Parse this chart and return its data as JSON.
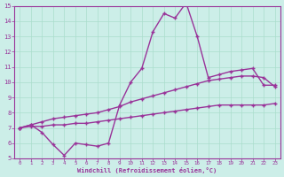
{
  "line1_x": [
    0,
    1,
    2,
    3,
    4,
    5,
    6,
    7,
    8,
    9,
    10,
    11,
    12,
    13,
    14,
    15,
    16,
    17,
    18,
    19,
    20,
    21,
    22,
    23
  ],
  "line1_y": [
    7.0,
    7.2,
    6.7,
    5.9,
    5.2,
    6.0,
    5.9,
    5.8,
    6.0,
    8.5,
    10.0,
    10.9,
    13.3,
    14.5,
    14.2,
    15.2,
    13.0,
    10.3,
    10.5,
    10.7,
    10.8,
    10.9,
    9.8,
    9.8
  ],
  "line2_x": [
    0,
    1,
    2,
    3,
    4,
    5,
    6,
    7,
    8,
    9,
    10,
    11,
    12,
    13,
    14,
    15,
    16,
    17,
    18,
    19,
    20,
    21,
    22,
    23
  ],
  "line2_y": [
    7.0,
    7.2,
    7.4,
    7.6,
    7.7,
    7.8,
    7.9,
    8.0,
    8.2,
    8.4,
    8.7,
    8.9,
    9.1,
    9.3,
    9.5,
    9.7,
    9.9,
    10.1,
    10.2,
    10.3,
    10.4,
    10.4,
    10.3,
    9.7
  ],
  "line3_x": [
    0,
    1,
    2,
    3,
    4,
    5,
    6,
    7,
    8,
    9,
    10,
    11,
    12,
    13,
    14,
    15,
    16,
    17,
    18,
    19,
    20,
    21,
    22,
    23
  ],
  "line3_y": [
    7.0,
    7.1,
    7.1,
    7.2,
    7.2,
    7.3,
    7.3,
    7.4,
    7.5,
    7.6,
    7.7,
    7.8,
    7.9,
    8.0,
    8.1,
    8.2,
    8.3,
    8.4,
    8.5,
    8.5,
    8.5,
    8.5,
    8.5,
    8.6
  ],
  "line_color": "#993399",
  "bg_color": "#cceee8",
  "grid_color": "#aaddcc",
  "xlabel": "Windchill (Refroidissement éolien,°C)",
  "xlim": [
    -0.5,
    23.5
  ],
  "ylim": [
    5,
    15
  ],
  "xticks": [
    0,
    1,
    2,
    3,
    4,
    5,
    6,
    7,
    8,
    9,
    10,
    11,
    12,
    13,
    14,
    15,
    16,
    17,
    18,
    19,
    20,
    21,
    22,
    23
  ],
  "yticks": [
    5,
    6,
    7,
    8,
    9,
    10,
    11,
    12,
    13,
    14,
    15
  ],
  "marker": "+",
  "marker_size": 3.5,
  "line_width": 1.0
}
